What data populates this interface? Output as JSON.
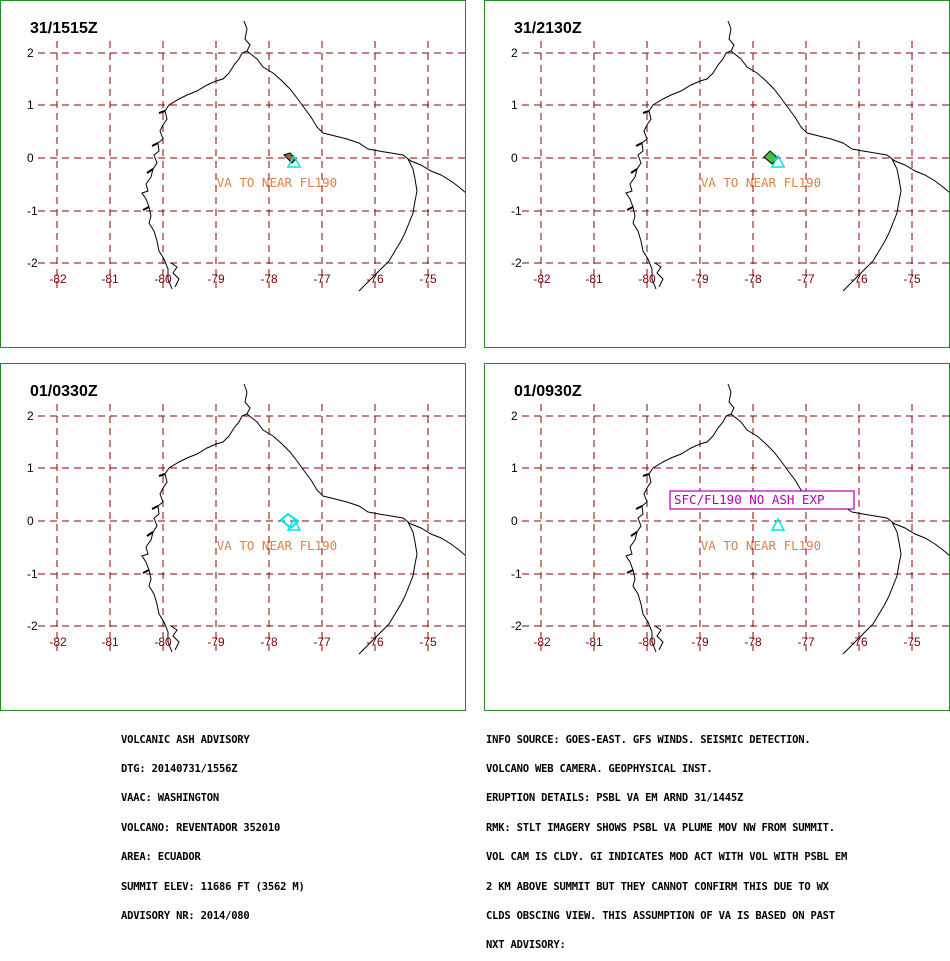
{
  "panels": [
    {
      "time": "31/1515Z",
      "label": "VA TO NEAR FL190",
      "plume": "brown"
    },
    {
      "time": "31/2130Z",
      "label": "VA TO NEAR FL190",
      "plume": "green"
    },
    {
      "time": "01/0330Z",
      "label": "VA TO NEAR FL190",
      "plume": "cyan"
    },
    {
      "time": "01/0930Z",
      "label": "VA TO NEAR FL190",
      "box_label": "SFC/FL190 NO ASH EXP",
      "plume": "none"
    }
  ],
  "x_ticks": [
    "-82",
    "-81",
    "-80",
    "-79",
    "-78",
    "-77",
    "-76",
    "-75"
  ],
  "y_ticks": [
    "2",
    "1",
    "0",
    "-1",
    "-2"
  ],
  "colors": {
    "grid": "#8b0000",
    "frame": "#228b22",
    "volcano": "#00e5e5",
    "va_text": "#e08048",
    "box": "#b000b0"
  },
  "footer_left": [
    "VOLCANIC ASH ADVISORY",
    "DTG: 20140731/1556Z",
    "VAAC: WASHINGTON",
    "VOLCANO: REVENTADOR 352010",
    "AREA: ECUADOR",
    "SUMMIT ELEV: 11686 FT (3562 M)",
    "ADVISORY NR: 2014/080"
  ],
  "footer_right": [
    "INFO SOURCE: GOES-EAST. GFS WINDS. SEISMIC DETECTION.",
    "VOLCANO WEB CAMERA. GEOPHYSICAL INST.",
    "ERUPTION DETAILS: PSBL VA EM ARND 31/1445Z",
    "RMK: STLT IMAGERY SHOWS PSBL VA PLUME MOV NW FROM SUMMIT.",
    "VOL CAM IS CLDY. GI INDICATES MOD ACT WITH VOL WITH PSBL EM",
    "2 KM ABOVE SUMMIT BUT THEY CANNOT CONFIRM THIS DUE TO WX",
    "CLDS OBSCING VIEW. THIS ASSUMPTION OF VA IS BASED ON PAST",
    "NXT ADVISORY:"
  ]
}
